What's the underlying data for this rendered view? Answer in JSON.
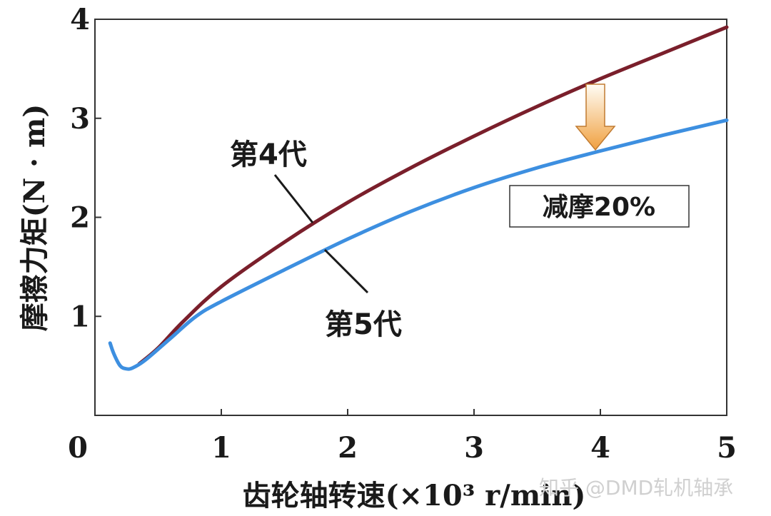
{
  "chart_data": {
    "type": "line",
    "title": "",
    "xlabel": "齿轮轴转速(×10³ r/min)",
    "ylabel": "摩擦力矩(N · m)",
    "xlim": [
      0,
      5
    ],
    "ylim": [
      0,
      4
    ],
    "x_ticks": [
      "0",
      "1",
      "2",
      "3",
      "4",
      "5"
    ],
    "y_ticks": [
      "1",
      "2",
      "3",
      "4"
    ],
    "grid": false,
    "series": [
      {
        "name": "第4代",
        "color": "#7a1f2b",
        "x": [
          0.35,
          0.5,
          0.7,
          1.0,
          1.5,
          2.0,
          2.5,
          3.0,
          3.5,
          4.0,
          4.5,
          5.0
        ],
        "y": [
          0.52,
          0.68,
          0.95,
          1.3,
          1.75,
          2.15,
          2.5,
          2.82,
          3.12,
          3.4,
          3.66,
          3.92
        ]
      },
      {
        "name": "第5代",
        "color": "#3d8fe0",
        "x": [
          0.12,
          0.15,
          0.2,
          0.25,
          0.3,
          0.4,
          0.6,
          0.8,
          1.0,
          1.5,
          2.0,
          2.5,
          3.0,
          3.5,
          4.0,
          4.5,
          5.0
        ],
        "y": [
          0.73,
          0.62,
          0.5,
          0.47,
          0.48,
          0.56,
          0.78,
          1.0,
          1.15,
          1.47,
          1.78,
          2.06,
          2.3,
          2.5,
          2.67,
          2.83,
          2.98
        ]
      }
    ],
    "annotations": [
      {
        "text": "减摩20%",
        "type": "boxed-label"
      },
      {
        "type": "arrow-down",
        "x": 3.95,
        "from_y": 3.35,
        "to_y": 2.7
      }
    ]
  },
  "watermark": "知乎 @DMD轧机轴承"
}
